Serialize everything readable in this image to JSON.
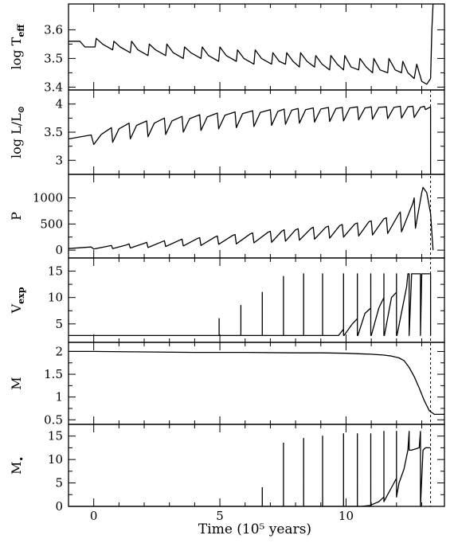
{
  "chart_data": {
    "type": "line",
    "xlabel": "Time (10⁵ years)",
    "x_ticks": [
      0,
      5,
      10
    ],
    "x_tick_labels": [
      "0",
      "5",
      "10"
    ],
    "xlim": [
      -1.0,
      13.9
    ],
    "vertical_dashed_line_x": 13.35,
    "panels": [
      {
        "label": "log T",
        "label_sub": "eff",
        "label_sup": "",
        "ylim": [
          3.39,
          3.69
        ],
        "ticks": [
          3.4,
          3.5,
          3.6
        ],
        "tick_labels": [
          "3.4",
          "3.5",
          "3.6"
        ],
        "series": [
          {
            "x": [
              -1.0,
              -0.55,
              -0.35,
              0.05,
              0.1,
              0.35,
              0.75,
              0.8,
              1.05,
              1.45,
              1.5,
              1.75,
              2.15,
              2.2,
              2.45,
              2.85,
              2.9,
              3.15,
              3.55,
              3.6,
              3.85,
              4.25,
              4.3,
              4.55,
              4.95,
              5.0,
              5.25,
              5.65,
              5.7,
              5.95,
              6.35,
              6.4,
              6.65,
              7.05,
              7.1,
              7.35,
              7.6,
              7.65,
              7.9,
              8.15,
              8.2,
              8.45,
              8.75,
              8.8,
              9.05,
              9.35,
              9.4,
              9.65,
              9.9,
              9.95,
              10.2,
              10.5,
              10.55,
              10.8,
              11.05,
              11.1,
              11.35,
              11.65,
              11.7,
              11.95,
              12.2,
              12.25,
              12.45,
              12.7,
              12.8,
              13.0,
              13.2,
              13.35,
              13.4,
              13.45
            ],
            "y": [
              3.56,
              3.56,
              3.54,
              3.54,
              3.57,
              3.55,
              3.53,
              3.56,
              3.54,
              3.52,
              3.56,
              3.53,
              3.51,
              3.55,
              3.53,
              3.51,
              3.55,
              3.52,
              3.5,
              3.54,
              3.52,
              3.5,
              3.54,
              3.51,
              3.49,
              3.54,
              3.51,
              3.49,
              3.53,
              3.5,
              3.48,
              3.53,
              3.5,
              3.48,
              3.52,
              3.49,
              3.48,
              3.52,
              3.49,
              3.47,
              3.52,
              3.49,
              3.47,
              3.51,
              3.48,
              3.46,
              3.51,
              3.48,
              3.46,
              3.51,
              3.47,
              3.46,
              3.5,
              3.47,
              3.45,
              3.5,
              3.46,
              3.45,
              3.5,
              3.46,
              3.45,
              3.49,
              3.45,
              3.43,
              3.48,
              3.42,
              3.41,
              3.43,
              3.6,
              3.69
            ]
          }
        ]
      },
      {
        "label": "log L/L",
        "label_sub": "⊙",
        "label_sup": "",
        "ylim": [
          2.75,
          4.25
        ],
        "ticks": [
          3,
          3.5,
          4
        ],
        "tick_labels": [
          "3",
          "3.5",
          "4"
        ],
        "series": [
          {
            "x": [
              -1.0,
              -0.1,
              0.0,
              0.3,
              0.7,
              0.75,
              1.0,
              1.4,
              1.45,
              1.7,
              2.1,
              2.15,
              2.4,
              2.8,
              2.85,
              3.1,
              3.5,
              3.55,
              3.8,
              4.2,
              4.25,
              4.5,
              4.9,
              4.95,
              5.2,
              5.6,
              5.65,
              5.9,
              6.3,
              6.35,
              6.6,
              7.0,
              7.05,
              7.3,
              7.55,
              7.6,
              7.85,
              8.1,
              8.15,
              8.4,
              8.7,
              8.75,
              9.0,
              9.3,
              9.35,
              9.6,
              9.85,
              9.9,
              10.15,
              10.45,
              10.5,
              10.75,
              11.0,
              11.05,
              11.3,
              11.6,
              11.65,
              11.9,
              12.15,
              12.2,
              12.45,
              12.65,
              12.7,
              12.95,
              13.1,
              13.15,
              13.35,
              13.35
            ],
            "y": [
              3.38,
              3.45,
              3.28,
              3.46,
              3.58,
              3.32,
              3.56,
              3.66,
              3.38,
              3.62,
              3.7,
              3.42,
              3.66,
              3.75,
              3.46,
              3.7,
              3.78,
              3.5,
              3.74,
              3.81,
              3.53,
              3.77,
              3.84,
              3.56,
              3.8,
              3.86,
              3.58,
              3.83,
              3.88,
              3.6,
              3.85,
              3.9,
              3.62,
              3.87,
              3.91,
              3.64,
              3.89,
              3.92,
              3.66,
              3.9,
              3.93,
              3.68,
              3.91,
              3.94,
              3.69,
              3.92,
              3.94,
              3.7,
              3.93,
              3.95,
              3.72,
              3.93,
              3.95,
              3.73,
              3.94,
              3.95,
              3.74,
              3.94,
              3.96,
              3.75,
              3.95,
              3.96,
              3.76,
              3.94,
              3.96,
              3.9,
              3.95,
              2.75
            ]
          }
        ]
      },
      {
        "label": "P",
        "label_sub": "",
        "label_sup": "",
        "ylim": [
          -150,
          1450
        ],
        "ticks": [
          0,
          500,
          1000
        ],
        "tick_labels": [
          "0",
          "500",
          "1000"
        ],
        "series": [
          {
            "x": [
              -1.0,
              -0.1,
              0.0,
              0.5,
              0.7,
              0.75,
              1.3,
              1.4,
              1.45,
              2.0,
              2.1,
              2.15,
              2.7,
              2.8,
              2.85,
              3.4,
              3.5,
              3.55,
              4.1,
              4.2,
              4.25,
              4.8,
              4.9,
              4.95,
              5.5,
              5.6,
              5.65,
              6.2,
              6.3,
              6.35,
              6.9,
              7.0,
              7.05,
              7.45,
              7.55,
              7.6,
              8.0,
              8.1,
              8.15,
              8.6,
              8.7,
              8.75,
              9.2,
              9.3,
              9.35,
              9.75,
              9.85,
              9.9,
              10.35,
              10.45,
              10.5,
              10.9,
              11.0,
              11.05,
              11.5,
              11.6,
              11.65,
              12.1,
              12.15,
              12.2,
              12.65,
              12.7,
              12.75,
              13.0,
              13.05,
              13.2,
              13.35,
              13.45
            ],
            "y": [
              30,
              60,
              20,
              70,
              90,
              30,
              100,
              120,
              40,
              130,
              150,
              50,
              160,
              180,
              70,
              190,
              210,
              80,
              220,
              240,
              90,
              250,
              270,
              110,
              280,
              300,
              120,
              310,
              330,
              140,
              340,
              360,
              150,
              360,
              390,
              170,
              390,
              410,
              190,
              410,
              440,
              210,
              440,
              460,
              230,
              470,
              490,
              250,
              500,
              520,
              270,
              540,
              560,
              290,
              600,
              620,
              320,
              700,
              730,
              350,
              900,
              1000,
              420,
              1100,
              1200,
              1100,
              700,
              0
            ]
          }
        ]
      },
      {
        "label": "V",
        "label_sub": "exp",
        "label_sup": "",
        "ylim": [
          1.5,
          17.5
        ],
        "ticks": [
          5,
          10,
          15
        ],
        "tick_labels": [
          "5",
          "10",
          "15"
        ],
        "series": [
          {
            "x": [
              -1.0,
              4.97,
              4.97,
              4.97,
              5.0,
              5.83,
              5.83,
              5.83,
              5.85,
              6.68,
              6.68,
              6.68,
              6.7,
              7.52,
              7.52,
              7.52,
              7.55,
              8.32,
              8.32,
              8.32,
              8.35,
              9.07,
              9.07,
              9.07,
              9.1,
              9.7,
              9.9,
              9.9,
              9.9,
              9.92,
              10.25,
              10.45,
              10.45,
              10.45,
              10.47,
              10.75,
              10.98,
              10.98,
              10.98,
              11.0,
              11.3,
              11.5,
              11.5,
              11.5,
              11.52,
              11.8,
              12.0,
              12.0,
              12.0,
              12.02,
              12.4,
              12.45,
              12.5,
              12.5,
              12.6,
              12.95,
              12.95,
              12.95,
              13.0,
              13.35,
              13.35,
              13.35
            ],
            "y": [
              2.8,
              2.8,
              6.0,
              2.8,
              2.8,
              2.8,
              8.5,
              2.8,
              2.8,
              2.8,
              11.0,
              2.8,
              2.8,
              2.8,
              14.0,
              2.8,
              2.8,
              2.8,
              14.5,
              2.8,
              2.8,
              2.8,
              14.5,
              2.8,
              2.8,
              2.8,
              4.0,
              14.5,
              2.8,
              2.8,
              5.0,
              6.0,
              14.5,
              2.8,
              2.8,
              7.0,
              8.0,
              14.5,
              2.8,
              2.8,
              8.0,
              10.0,
              14.5,
              2.8,
              2.8,
              10.0,
              11.0,
              14.5,
              2.8,
              2.8,
              12.0,
              14.5,
              14.5,
              2.8,
              14.5,
              14.5,
              14.5,
              2.8,
              14.5,
              14.5,
              14.5,
              2.8
            ]
          }
        ]
      },
      {
        "label": "M",
        "label_sub": "",
        "label_sup": "",
        "ylim": [
          0.4,
          2.2
        ],
        "ticks": [
          0.5,
          1,
          1.5,
          2
        ],
        "tick_labels": [
          "0.5",
          "1",
          "1.5",
          "2"
        ],
        "series": [
          {
            "x": [
              -1.0,
              0.0,
              2.0,
              4.0,
              6.0,
              8.0,
              9.0,
              10.0,
              10.5,
              11.0,
              11.5,
              11.8,
              12.1,
              12.3,
              12.5,
              12.7,
              12.9,
              13.1,
              13.3,
              13.5,
              13.9
            ],
            "y": [
              2.0,
              2.0,
              1.99,
              1.98,
              1.98,
              1.97,
              1.97,
              1.96,
              1.95,
              1.94,
              1.92,
              1.9,
              1.86,
              1.8,
              1.65,
              1.45,
              1.2,
              0.92,
              0.7,
              0.62,
              0.62
            ]
          }
        ]
      },
      {
        "label": "M",
        "label_sub": "",
        "label_sup": "•",
        "ylim": [
          0,
          17.5
        ],
        "ticks": [
          0,
          5,
          10,
          15
        ],
        "tick_labels": [
          "0",
          "5",
          "10",
          "15"
        ],
        "series": [
          {
            "x": [
              -1.0,
              6.68,
              6.68,
              6.68,
              7.52,
              7.52,
              7.52,
              8.32,
              8.32,
              8.32,
              9.07,
              9.07,
              9.07,
              9.9,
              9.9,
              9.9,
              10.45,
              10.45,
              10.45,
              10.6,
              10.98,
              10.98,
              10.98,
              11.0,
              11.3,
              11.5,
              11.5,
              11.5,
              11.6,
              11.8,
              12.0,
              12.0,
              12.0,
              12.1,
              12.3,
              12.45,
              12.5,
              12.5,
              12.6,
              12.9,
              12.95,
              12.95,
              13.05,
              13.15,
              13.3,
              13.35
            ],
            "y": [
              0,
              0,
              4.0,
              0,
              0,
              13.5,
              0,
              0,
              14.5,
              0,
              0,
              15.0,
              0,
              0,
              15.5,
              0,
              0,
              15.5,
              0,
              0,
              0.2,
              15.5,
              0,
              0.3,
              1.0,
              2.0,
              16.0,
              1.0,
              2.0,
              4.0,
              6.0,
              16.0,
              2.0,
              5.0,
              8.0,
              12.0,
              16.0,
              12.0,
              12.0,
              12.5,
              16.0,
              0,
              12.0,
              12.5,
              12.5,
              12.5
            ]
          }
        ]
      }
    ]
  }
}
